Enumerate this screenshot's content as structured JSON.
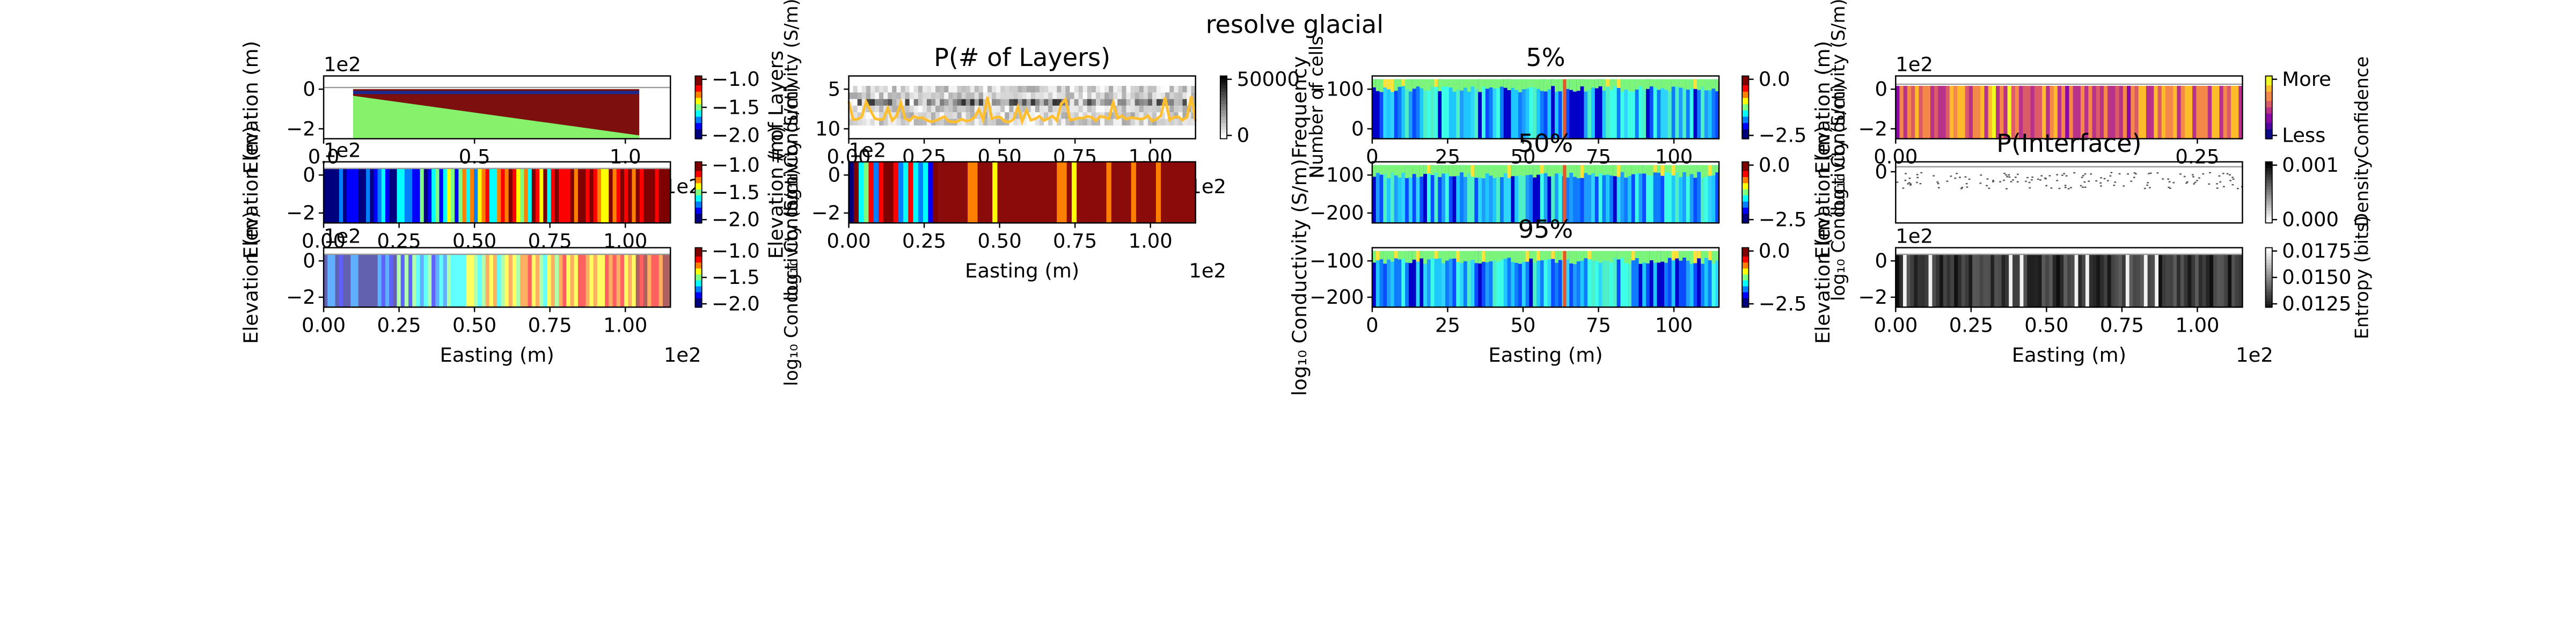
{
  "figure": {
    "title": "resolve glacial"
  },
  "chart_data": [
    {
      "id": "model",
      "type": "heatmap",
      "title": "",
      "xlabel": "",
      "ylabel": "Elevation (m)",
      "xlim": [
        0,
        118
      ],
      "ylim": [
        -230,
        70
      ],
      "xticks": [
        "0.0",
        "0.5",
        "1.0"
      ],
      "yticks": [
        "0",
        "−2"
      ],
      "y_offset_label": "1e2",
      "x_offset_label": "1e2",
      "layers": [
        {
          "name": "upper",
          "color": "#7d0f0f"
        },
        {
          "name": "lower",
          "color": "#86f26c"
        }
      ],
      "colorbar": {
        "label": "log₁₀ Conductivity (S/m)",
        "ticks": [
          "−1.0",
          "−1.5",
          "−2.0"
        ],
        "colormap": "jet",
        "range": [
          -2.0,
          -1.0
        ]
      }
    },
    {
      "id": "best",
      "type": "heatmap",
      "title": "",
      "xlabel": "",
      "ylabel": "Elevation (m)",
      "xlim": [
        0,
        118
      ],
      "ylim": [
        -230,
        30
      ],
      "yticks": [
        "0",
        "−2"
      ],
      "xticks": [
        "0.00",
        "0.25",
        "0.50",
        "0.75",
        "1.00"
      ],
      "y_offset_label": "1e2",
      "colorbar": {
        "label": "log₁₀ Conductivity (S/m)",
        "ticks": [
          "−1.0",
          "−1.5",
          "−2.0"
        ],
        "colormap": "jet",
        "range": [
          -2.0,
          -1.0
        ]
      }
    },
    {
      "id": "mean",
      "type": "heatmap",
      "title": "",
      "xlabel": "Easting (m)",
      "ylabel": "Elevation (m)",
      "xlim": [
        0,
        118
      ],
      "ylim": [
        -230,
        30
      ],
      "yticks": [
        "0",
        "−2"
      ],
      "xticks": [
        "0.00",
        "0.25",
        "0.50",
        "0.75",
        "1.00"
      ],
      "x_offset_label": "1e2",
      "y_offset_label": "1e2",
      "colorbar": {
        "label": "log₁₀ Conductivity (S/m)",
        "ticks": [
          "−1.0",
          "−1.5",
          "−2.0"
        ],
        "colormap": "jet",
        "range": [
          -2.0,
          -1.0
        ]
      }
    },
    {
      "id": "nlayers",
      "type": "heatmap",
      "title": "P(# of Layers)",
      "xlabel": "",
      "ylabel": "# of Layers",
      "xlim": [
        0,
        118
      ],
      "ylim": [
        1.5,
        11.5
      ],
      "yticks": [
        "5",
        "10"
      ],
      "xticks": [
        "0.00",
        "0.25",
        "0.50",
        "0.75",
        "1.00"
      ],
      "x_offset_label": "1e2",
      "line_color": "#ffbf2f",
      "colorbar": {
        "label": "Number of cells",
        "ticks": [
          "50000",
          "0"
        ],
        "colormap": "gray_r"
      }
    },
    {
      "id": "doi",
      "type": "heatmap",
      "title": "",
      "xlabel": "Easting (m)",
      "ylabel": "Elevation (m)",
      "xlim": [
        0,
        118
      ],
      "ylim": [
        -260,
        10
      ],
      "xticks": [
        "0.00",
        "0.25",
        "0.50",
        "0.75",
        "1.00"
      ],
      "yticks": [
        "0",
        "−2"
      ],
      "x_offset_label": "1e2",
      "y_offset_label": "1e2",
      "colorbar": {
        "label": "log₁₀ Conductivity (S/m)",
        "ticks": [
          "−1.0",
          "−1.5",
          "−2.0"
        ],
        "colormap": "jet",
        "range": [
          -2.0,
          -1.0
        ]
      }
    },
    {
      "id": "p5",
      "type": "heatmap",
      "title": "5%",
      "xlabel": "",
      "ylabel": "Frequency",
      "xlim": [
        0,
        118
      ],
      "ylim": [
        -230,
        40
      ],
      "yticks": [
        "−100",
        "0"
      ],
      "xticks": [
        "0",
        "25",
        "50",
        "75",
        "100"
      ],
      "colorbar": {
        "label": "log₁₀ Conductivity (S/m)",
        "ticks": [
          "0.0",
          "−2.5"
        ],
        "colormap": "jet",
        "range": [
          -4,
          0
        ]
      }
    },
    {
      "id": "p50",
      "type": "heatmap",
      "title": "50%",
      "xlabel": "",
      "ylabel": "",
      "xlim": [
        0,
        118
      ],
      "ylim": [
        -230,
        40
      ],
      "yticks": [
        "−100",
        "−200"
      ],
      "xticks": [],
      "colorbar": {
        "label": "log₁₀ Conductivity (S/m)",
        "ticks": [
          "0.0",
          "−2.5"
        ],
        "colormap": "jet",
        "range": [
          -4,
          0
        ]
      }
    },
    {
      "id": "p95",
      "type": "heatmap",
      "title": "95%",
      "xlabel": "Easting (m)",
      "ylabel": "log₁₀ Conductivity (S/m)",
      "xlim": [
        0,
        118
      ],
      "ylim": [
        -230,
        40
      ],
      "yticks": [
        "−100",
        "−200"
      ],
      "xticks": [
        "0",
        "25",
        "50",
        "75",
        "100"
      ],
      "colorbar": {
        "label": "",
        "ticks": [
          "0.0",
          "−2.5"
        ],
        "colormap": "jet",
        "range": [
          -4,
          0
        ]
      }
    },
    {
      "id": "confidence",
      "type": "heatmap",
      "title": "",
      "xlabel": "",
      "ylabel": "Elevation (m)",
      "xlim": [
        0,
        118
      ],
      "ylim": [
        -230,
        40
      ],
      "yticks": [
        "0",
        "−2"
      ],
      "xticks": [
        "0.00",
        "0.25"
      ],
      "y_offset_label": "1e2",
      "colorbar": {
        "label": "Confidence",
        "ticks": [
          "More",
          "Less"
        ],
        "colormap": "plasma"
      }
    },
    {
      "id": "interface",
      "type": "heatmap",
      "title": "P(Interface)",
      "xlabel": "",
      "ylabel": "Elevation (m)",
      "xlim": [
        0,
        118
      ],
      "ylim": [
        -230,
        30
      ],
      "yticks": [
        "0"
      ],
      "xticks": [],
      "colorbar": {
        "label": "Density",
        "ticks": [
          "0.001",
          "0.000"
        ],
        "colormap": "gray_r"
      }
    },
    {
      "id": "entropy",
      "type": "heatmap",
      "title": "",
      "xlabel": "Easting (m)",
      "ylabel": "Elevation (m)",
      "xlim": [
        0,
        118
      ],
      "ylim": [
        -230,
        30
      ],
      "yticks": [
        "0",
        "−2"
      ],
      "xticks": [
        "0.00",
        "0.25",
        "0.50",
        "0.75",
        "1.00"
      ],
      "x_offset_label": "1e2",
      "y_offset_label": "1e2",
      "colorbar": {
        "label": "Entropy (bits)",
        "ticks": [
          "0.0175",
          "0.0150",
          "0.0125"
        ],
        "colormap": "gray"
      }
    }
  ]
}
